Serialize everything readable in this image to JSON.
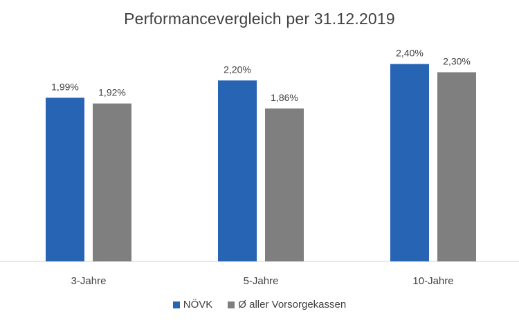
{
  "chart_data": {
    "type": "bar",
    "title": "Performancevergleich per 31.12.2019",
    "categories": [
      "3-Jahre",
      "5-Jahre",
      "10-Jahre"
    ],
    "series": [
      {
        "name": "NÖVK",
        "color": "#2764B4",
        "values": [
          1.99,
          2.2,
          2.4
        ],
        "labels": [
          "1,99%",
          "2,20%",
          "2,40%"
        ]
      },
      {
        "name": "Ø aller Vorsorgekassen",
        "color": "#7F7F7F",
        "values": [
          1.92,
          1.86,
          2.3
        ],
        "labels": [
          "1,92%",
          "1,86%",
          "2,30%"
        ]
      }
    ],
    "ylim": [
      0,
      2.8
    ],
    "grid": false,
    "legend_position": "bottom"
  }
}
